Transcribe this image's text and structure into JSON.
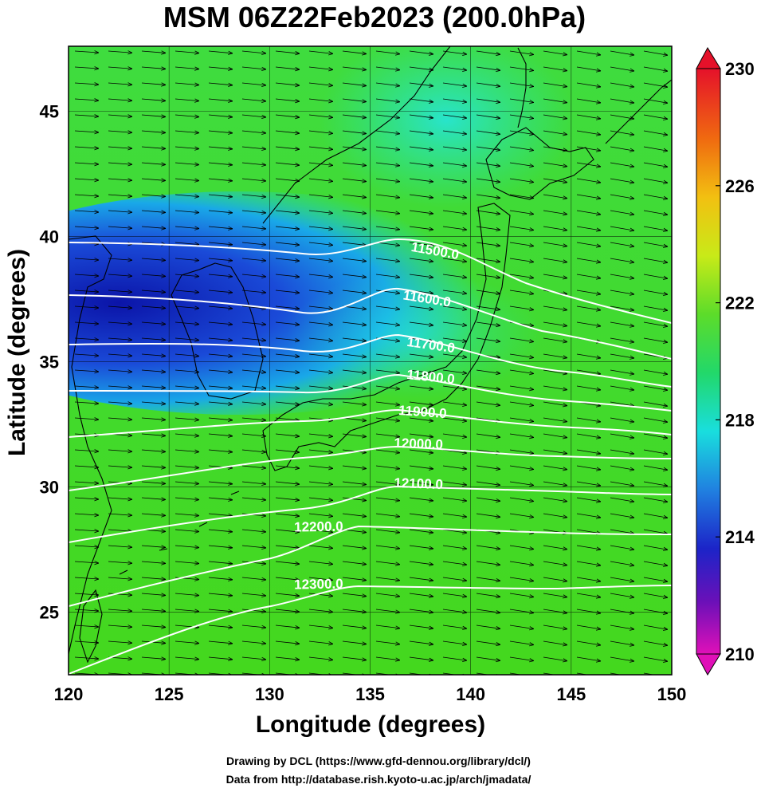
{
  "title": "MSM 06Z22Feb2023 (200.0hPa)",
  "axes": {
    "x_label": "Longitude (degrees)",
    "y_label": "Latitude  (degrees)",
    "x_ticks": [
      "120",
      "125",
      "130",
      "135",
      "140",
      "145",
      "150"
    ],
    "y_ticks": [
      "25",
      "30",
      "35",
      "40",
      "45"
    ]
  },
  "map": {
    "lon_range": [
      120,
      150
    ],
    "lat_range": [
      22.5,
      47.6
    ],
    "field": "temperature (K) at 200.0hPa",
    "overlays": [
      "geopotential height contours",
      "wind vectors",
      "coastlines"
    ]
  },
  "colorbar": {
    "ticks": [
      "230",
      "226",
      "222",
      "218",
      "214",
      "210"
    ],
    "range": [
      210,
      230
    ]
  },
  "contour_labels": [
    "11500.0",
    "11600.0",
    "11700.0",
    "11800.0",
    "11900.0",
    "12000.0",
    "12100.0",
    "12200.0",
    "12300.0"
  ],
  "credits": {
    "line1": "Drawing by DCL (https://www.gfd-dennou.org/library/dcl/)",
    "line2": "Data from http://database.rish.kyoto-u.ac.jp/arch/jmadata/"
  },
  "colors": {
    "low_temp": "#1a1fbf",
    "mid_temp": "#19e0e0",
    "high_temp": "#3fdc2a",
    "contour": "#ffffff"
  }
}
